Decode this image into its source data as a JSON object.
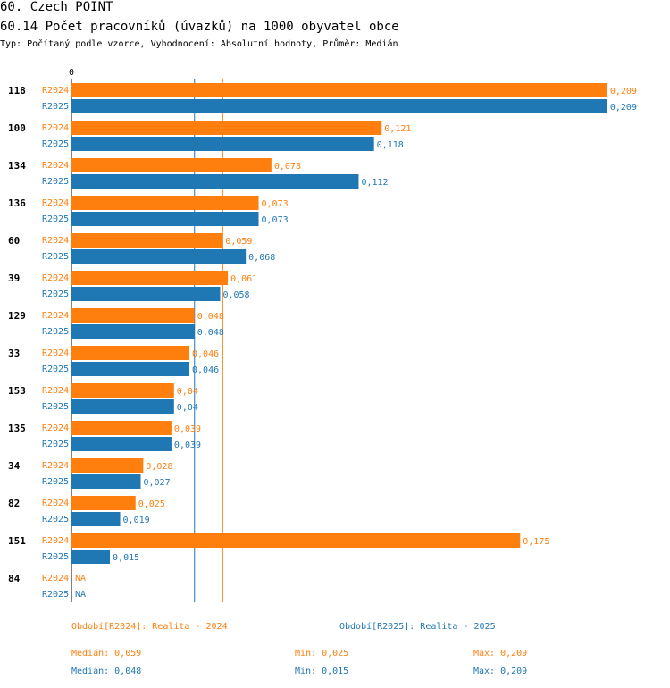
{
  "header": {
    "title": "60. Czech POINT",
    "subtitle": "60.14 Počet pracovníků (úvazků) na 1000 obyvatel obce",
    "meta": "Typ: Počítaný podle vzorce, Vyhodnocení: Absolutní hodnoty, Průměr: Medián"
  },
  "colors": {
    "r2024": "#ff7f0e",
    "r2025": "#1f77b4"
  },
  "chart_data": {
    "type": "bar",
    "orientation": "horizontal",
    "axis_zero_label": "0",
    "xlim": [
      0,
      0.2195
    ],
    "categories": [
      "118",
      "100",
      "134",
      "136",
      "60",
      "39",
      "129",
      "33",
      "153",
      "135",
      "34",
      "82",
      "151",
      "84"
    ],
    "series": [
      {
        "name": "R2024",
        "values": [
          0.209,
          0.121,
          0.078,
          0.073,
          0.059,
          0.061,
          0.048,
          0.046,
          0.04,
          0.039,
          0.028,
          0.025,
          0.175,
          null
        ],
        "labels": [
          "0,209",
          "0,121",
          "0,078",
          "0,073",
          "0,059",
          "0,061",
          "0,048",
          "0,046",
          "0,04",
          "0,039",
          "0,028",
          "0,025",
          "0,175",
          "NA"
        ]
      },
      {
        "name": "R2025",
        "values": [
          0.209,
          0.118,
          0.112,
          0.073,
          0.068,
          0.058,
          0.048,
          0.046,
          0.04,
          0.039,
          0.027,
          0.019,
          0.015,
          null
        ],
        "labels": [
          "0,209",
          "0,118",
          "0,112",
          "0,073",
          "0,068",
          "0,058",
          "0,048",
          "0,046",
          "0,04",
          "0,039",
          "0,027",
          "0,019",
          "0,015",
          "NA"
        ]
      }
    ],
    "median_lines": {
      "R2024": 0.059,
      "R2025": 0.048
    }
  },
  "legend": {
    "r2024": {
      "period": "Období[R2024]: Realita - 2024",
      "median": "Medián: 0,059",
      "min": "Min: 0,025",
      "max": "Max: 0,209"
    },
    "r2025": {
      "period": "Období[R2025]: Realita - 2025",
      "median": "Medián: 0,048",
      "min": "Min: 0,015",
      "max": "Max: 0,209"
    }
  }
}
